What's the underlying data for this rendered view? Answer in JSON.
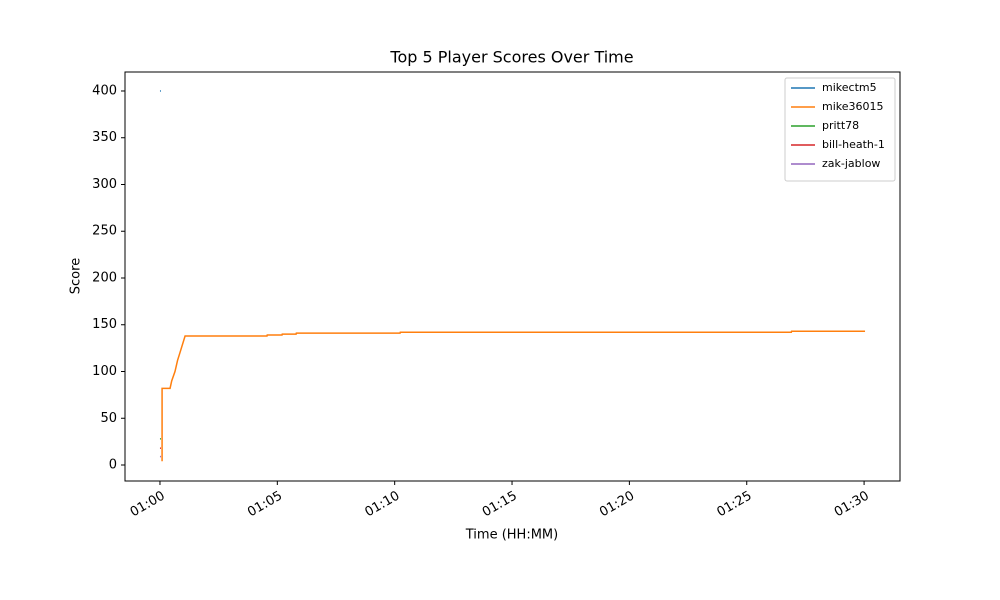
{
  "chart_data": {
    "type": "line",
    "title": "Top 5 Player Scores Over Time",
    "x_label": "Time (HH:MM)",
    "y_label": "Score",
    "xlim": [
      58.51,
      91.53
    ],
    "ylim": [
      -17.1,
      420.3
    ],
    "xticks": [
      {
        "value": 60,
        "label": "01:00"
      },
      {
        "value": 65,
        "label": "01:05"
      },
      {
        "value": 70,
        "label": "01:10"
      },
      {
        "value": 75,
        "label": "01:15"
      },
      {
        "value": 80,
        "label": "01:20"
      },
      {
        "value": 85,
        "label": "01:25"
      },
      {
        "value": 90,
        "label": "01:30"
      }
    ],
    "yticks": [
      0,
      50,
      100,
      150,
      200,
      250,
      300,
      350,
      400
    ],
    "legend": "upper right",
    "series": [
      {
        "name": "mikectm5",
        "color": "#1f77b4",
        "x": [
          60,
          60.04
        ],
        "values": [
          400,
          400
        ]
      },
      {
        "name": "mike36015",
        "color": "#ff7f0e",
        "x": [
          60.09,
          60.09,
          60.1,
          60.43,
          60.5,
          60.64,
          60.75,
          60.85,
          61.07,
          64.56,
          64.57,
          65.2,
          65.21,
          65.8,
          65.81,
          70.23,
          70.24,
          86.9,
          86.91,
          90.04
        ],
        "values": [
          4,
          82,
          82,
          82,
          90,
          100,
          112,
          120,
          138,
          138,
          139,
          139,
          140,
          140,
          141,
          141,
          142,
          142,
          143,
          143
        ]
      },
      {
        "name": "pritt78",
        "color": "#2ca02c",
        "x": [
          60,
          60.04
        ],
        "values": [
          28,
          28
        ]
      },
      {
        "name": "bill-heath-1",
        "color": "#d62728",
        "x": [
          60,
          60.04
        ],
        "values": [
          18,
          18
        ]
      },
      {
        "name": "zak-jablow",
        "color": "#9467bd",
        "x": [
          60,
          60.04
        ],
        "values": [
          9,
          9
        ]
      }
    ]
  }
}
